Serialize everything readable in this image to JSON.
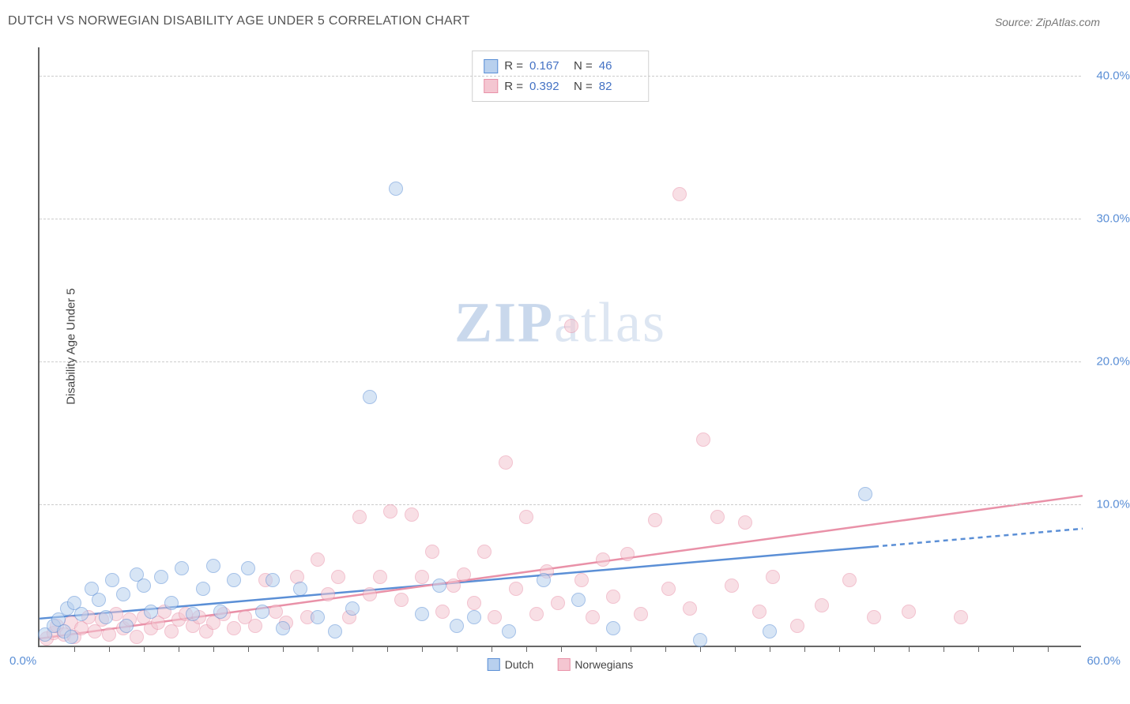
{
  "title": "DUTCH VS NORWEGIAN DISABILITY AGE UNDER 5 CORRELATION CHART",
  "source": "Source: ZipAtlas.com",
  "ylabel": "Disability Age Under 5",
  "watermark": {
    "bold": "ZIP",
    "light": "atlas"
  },
  "chart": {
    "type": "scatter",
    "xlim": [
      0,
      60
    ],
    "ylim": [
      0,
      42
    ],
    "x_minor_step": 2,
    "yticks": [
      10,
      20,
      30,
      40
    ],
    "ytick_labels": [
      "10.0%",
      "20.0%",
      "30.0%",
      "40.0%"
    ],
    "origin_label": "0.0%",
    "x_end_label": "60.0%",
    "grid_color": "#cccccc",
    "background_color": "#ffffff",
    "point_radius": 9,
    "point_opacity": 0.55
  },
  "series": {
    "dutch": {
      "label": "Dutch",
      "color_fill": "#b8d0ee",
      "color_stroke": "#5b8fd6",
      "R": "0.167",
      "N": "46",
      "trend": {
        "y0": 2.0,
        "y60": 8.3,
        "solid_until_x": 48
      },
      "points": [
        [
          0.3,
          0.8
        ],
        [
          0.8,
          1.4
        ],
        [
          1.1,
          1.8
        ],
        [
          1.4,
          1.0
        ],
        [
          1.6,
          2.6
        ],
        [
          1.8,
          0.6
        ],
        [
          2.0,
          3.0
        ],
        [
          2.4,
          2.2
        ],
        [
          3.0,
          4.0
        ],
        [
          3.4,
          3.2
        ],
        [
          3.8,
          2.0
        ],
        [
          4.2,
          4.6
        ],
        [
          4.8,
          3.6
        ],
        [
          5.0,
          1.4
        ],
        [
          5.6,
          5.0
        ],
        [
          6.0,
          4.2
        ],
        [
          6.4,
          2.4
        ],
        [
          7.0,
          4.8
        ],
        [
          7.6,
          3.0
        ],
        [
          8.2,
          5.4
        ],
        [
          8.8,
          2.2
        ],
        [
          9.4,
          4.0
        ],
        [
          10.0,
          5.6
        ],
        [
          10.4,
          2.4
        ],
        [
          11.2,
          4.6
        ],
        [
          12.0,
          5.4
        ],
        [
          12.8,
          2.4
        ],
        [
          13.4,
          4.6
        ],
        [
          14.0,
          1.2
        ],
        [
          15.0,
          4.0
        ],
        [
          16.0,
          2.0
        ],
        [
          17.0,
          1.0
        ],
        [
          18.0,
          2.6
        ],
        [
          19.0,
          17.4
        ],
        [
          20.5,
          32.0
        ],
        [
          22.0,
          2.2
        ],
        [
          23.0,
          4.2
        ],
        [
          24.0,
          1.4
        ],
        [
          25.0,
          2.0
        ],
        [
          27.0,
          1.0
        ],
        [
          29.0,
          4.6
        ],
        [
          31.0,
          3.2
        ],
        [
          33.0,
          1.2
        ],
        [
          38.0,
          0.4
        ],
        [
          47.5,
          10.6
        ],
        [
          42.0,
          1.0
        ]
      ]
    },
    "norwegian": {
      "label": "Norwegians",
      "color_fill": "#f4c6d1",
      "color_stroke": "#e991a8",
      "R": "0.392",
      "N": "82",
      "trend": {
        "y0": 0.6,
        "y60": 10.6,
        "solid_until_x": 60
      },
      "points": [
        [
          0.4,
          0.5
        ],
        [
          0.8,
          0.9
        ],
        [
          1.0,
          1.4
        ],
        [
          1.4,
          0.8
        ],
        [
          1.8,
          1.6
        ],
        [
          2.0,
          0.6
        ],
        [
          2.4,
          1.2
        ],
        [
          2.8,
          2.0
        ],
        [
          3.2,
          1.0
        ],
        [
          3.6,
          1.8
        ],
        [
          4.0,
          0.8
        ],
        [
          4.4,
          2.2
        ],
        [
          4.8,
          1.2
        ],
        [
          5.2,
          1.8
        ],
        [
          5.6,
          0.6
        ],
        [
          6.0,
          2.0
        ],
        [
          6.4,
          1.2
        ],
        [
          6.8,
          1.6
        ],
        [
          7.2,
          2.4
        ],
        [
          7.6,
          1.0
        ],
        [
          8.0,
          1.8
        ],
        [
          8.4,
          2.2
        ],
        [
          8.8,
          1.4
        ],
        [
          9.2,
          2.0
        ],
        [
          9.6,
          1.0
        ],
        [
          10.0,
          1.6
        ],
        [
          10.6,
          2.2
        ],
        [
          11.2,
          1.2
        ],
        [
          11.8,
          2.0
        ],
        [
          12.4,
          1.4
        ],
        [
          13.0,
          4.6
        ],
        [
          13.6,
          2.4
        ],
        [
          14.2,
          1.6
        ],
        [
          14.8,
          4.8
        ],
        [
          15.4,
          2.0
        ],
        [
          16.0,
          6.0
        ],
        [
          16.6,
          3.6
        ],
        [
          17.2,
          4.8
        ],
        [
          17.8,
          2.0
        ],
        [
          18.4,
          9.0
        ],
        [
          19.0,
          3.6
        ],
        [
          19.6,
          4.8
        ],
        [
          20.2,
          9.4
        ],
        [
          20.8,
          3.2
        ],
        [
          21.4,
          9.2
        ],
        [
          22.0,
          4.8
        ],
        [
          22.6,
          6.6
        ],
        [
          23.2,
          2.4
        ],
        [
          23.8,
          4.2
        ],
        [
          24.4,
          5.0
        ],
        [
          25.0,
          3.0
        ],
        [
          25.6,
          6.6
        ],
        [
          26.2,
          2.0
        ],
        [
          26.8,
          12.8
        ],
        [
          27.4,
          4.0
        ],
        [
          28.0,
          9.0
        ],
        [
          28.6,
          2.2
        ],
        [
          29.2,
          5.2
        ],
        [
          29.8,
          3.0
        ],
        [
          30.6,
          22.4
        ],
        [
          31.2,
          4.6
        ],
        [
          31.8,
          2.0
        ],
        [
          32.4,
          6.0
        ],
        [
          33.0,
          3.4
        ],
        [
          33.8,
          6.4
        ],
        [
          34.6,
          2.2
        ],
        [
          35.4,
          8.8
        ],
        [
          36.2,
          4.0
        ],
        [
          36.8,
          31.6
        ],
        [
          37.4,
          2.6
        ],
        [
          38.2,
          14.4
        ],
        [
          39.0,
          9.0
        ],
        [
          39.8,
          4.2
        ],
        [
          40.6,
          8.6
        ],
        [
          41.4,
          2.4
        ],
        [
          42.2,
          4.8
        ],
        [
          43.6,
          1.4
        ],
        [
          45.0,
          2.8
        ],
        [
          46.6,
          4.6
        ],
        [
          48.0,
          2.0
        ],
        [
          50.0,
          2.4
        ],
        [
          53.0,
          2.0
        ]
      ]
    }
  },
  "legend_bottom": [
    {
      "key": "dutch"
    },
    {
      "key": "norwegian"
    }
  ]
}
